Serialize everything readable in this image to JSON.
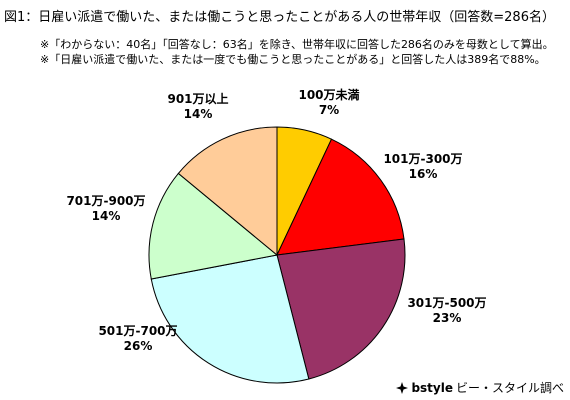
{
  "title": "図1：日雇い派遣で働いた、または働こうと思ったことがある人の世帯年収（回答数=286名）",
  "notes": [
    "※「わからない：40名」「回答なし：63名」を除き、世帯年収に回答した286名のみを母数として算出。",
    "※「日雇い派遣で働いた、または一度でも働こうと思ったことがある」と回答した人は389名で88%。"
  ],
  "footer": {
    "brand": "bstyle",
    "text": "ビー・スタイル調べ",
    "icon": "sparkle-icon"
  },
  "chart_data": {
    "type": "pie",
    "title": "",
    "start_angle_deg": 0,
    "direction": "clockwise",
    "slices": [
      {
        "label": "100万未満",
        "value": 7,
        "display": "7%",
        "color": "#ffcc00"
      },
      {
        "label": "101万-300万",
        "value": 16,
        "display": "16%",
        "color": "#ff0000"
      },
      {
        "label": "301万-500万",
        "value": 23,
        "display": "23%",
        "color": "#993366"
      },
      {
        "label": "501万-700万",
        "value": 26,
        "display": "26%",
        "color": "#ccffff"
      },
      {
        "label": "701万-900万",
        "value": 14,
        "display": "14%",
        "color": "#ccffcc"
      },
      {
        "label": "901万以上",
        "value": 14,
        "display": "14%",
        "color": "#ffcc99"
      }
    ]
  }
}
